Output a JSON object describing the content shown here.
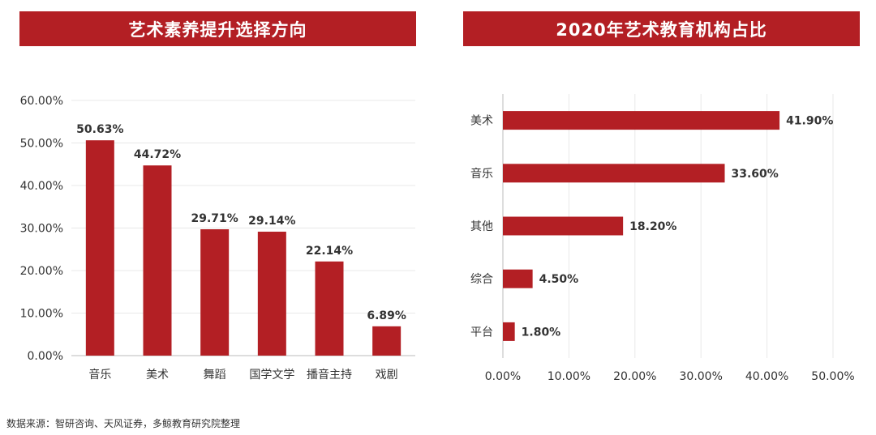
{
  "chart_data": [
    {
      "type": "bar",
      "title": "艺术素养提升选择方向",
      "categories": [
        "音乐",
        "美术",
        "舞蹈",
        "国学文学",
        "播音主持",
        "戏剧"
      ],
      "values": [
        50.63,
        44.72,
        29.71,
        29.14,
        22.14,
        6.89
      ],
      "value_labels": [
        "50.63%",
        "44.72%",
        "29.71%",
        "29.14%",
        "22.14%",
        "6.89%"
      ],
      "ylim": [
        0,
        60
      ],
      "yticks": [
        "0.00%",
        "10.00%",
        "20.00%",
        "30.00%",
        "40.00%",
        "50.00%",
        "60.00%"
      ],
      "grid": true
    },
    {
      "type": "bar",
      "orientation": "horizontal",
      "title": "2020年艺术教育机构占比",
      "categories": [
        "美术",
        "音乐",
        "其他",
        "综合",
        "平台"
      ],
      "values": [
        41.9,
        33.6,
        18.2,
        4.5,
        1.8
      ],
      "value_labels": [
        "41.90%",
        "33.60%",
        "18.20%",
        "4.50%",
        "1.80%"
      ],
      "xlim": [
        0,
        50
      ],
      "xticks": [
        "0.00%",
        "10.00%",
        "20.00%",
        "30.00%",
        "40.00%",
        "50.00%"
      ],
      "grid": true
    }
  ],
  "colors": {
    "bar": "#b31f24",
    "banner": "#b31f24",
    "grid": "#e8e8e8",
    "text": "#333333"
  },
  "source_text": "数据来源：智研咨询、天风证券，多鲸教育研究院整理"
}
